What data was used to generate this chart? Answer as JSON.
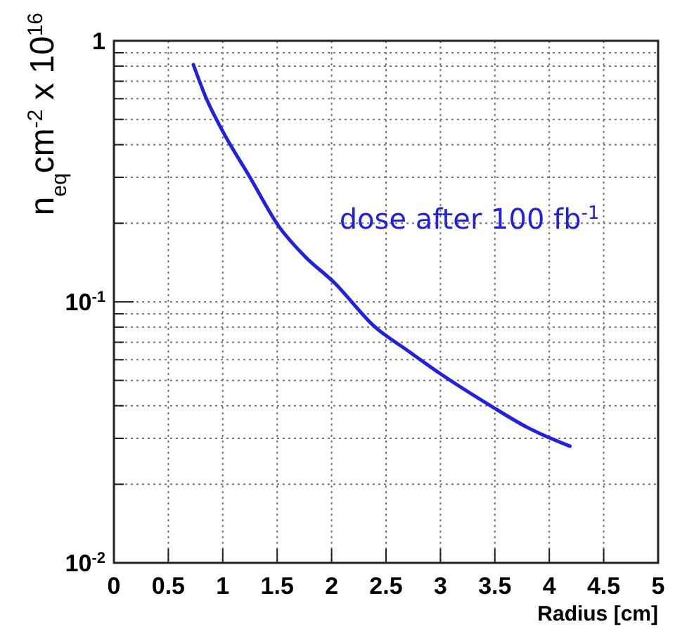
{
  "chart_data": {
    "type": "line",
    "xlabel": "Radius [cm]",
    "ylabel": "n$_{eq}$cm$^{-2}$ x 10$^{16}$",
    "xlim": [
      0,
      5
    ],
    "ylim": [
      0.01,
      1
    ],
    "log": "y",
    "grid": true,
    "marker": "none",
    "line_style": "solid",
    "xticks": [
      0,
      0.5,
      1,
      1.5,
      2,
      2.5,
      3,
      3.5,
      4,
      4.5,
      5
    ],
    "yticks": [
      {
        "value": 0.01,
        "label": "10$^{-2}$"
      },
      {
        "value": 0.02,
        "label": null
      },
      {
        "value": 0.03,
        "label": null
      },
      {
        "value": 0.04,
        "label": null
      },
      {
        "value": 0.05,
        "label": null
      },
      {
        "value": 0.06,
        "label": null
      },
      {
        "value": 0.07,
        "label": null
      },
      {
        "value": 0.08,
        "label": null
      },
      {
        "value": 0.09,
        "label": null
      },
      {
        "value": 0.1,
        "label": "10$^{-1}$"
      },
      {
        "value": 0.2,
        "label": null
      },
      {
        "value": 0.3,
        "label": null
      },
      {
        "value": 0.4,
        "label": null
      },
      {
        "value": 0.5,
        "label": null
      },
      {
        "value": 0.6,
        "label": null
      },
      {
        "value": 0.7,
        "label": null
      },
      {
        "value": 0.8,
        "label": null
      },
      {
        "value": 0.9,
        "label": null
      },
      {
        "value": 1,
        "label": "1"
      }
    ],
    "series": [
      {
        "name": "dose after 100 fb$^{-1}$",
        "color": "#2222dd",
        "x": [
          0.73,
          0.85,
          1.0,
          1.25,
          1.51,
          1.75,
          2.02,
          2.4,
          2.7,
          3.0,
          3.46,
          3.8,
          4.19
        ],
        "values": [
          0.81,
          0.6,
          0.45,
          0.3,
          0.196,
          0.15,
          0.119,
          0.08,
          0.065,
          0.053,
          0.04,
          0.033,
          0.028
        ]
      }
    ]
  }
}
